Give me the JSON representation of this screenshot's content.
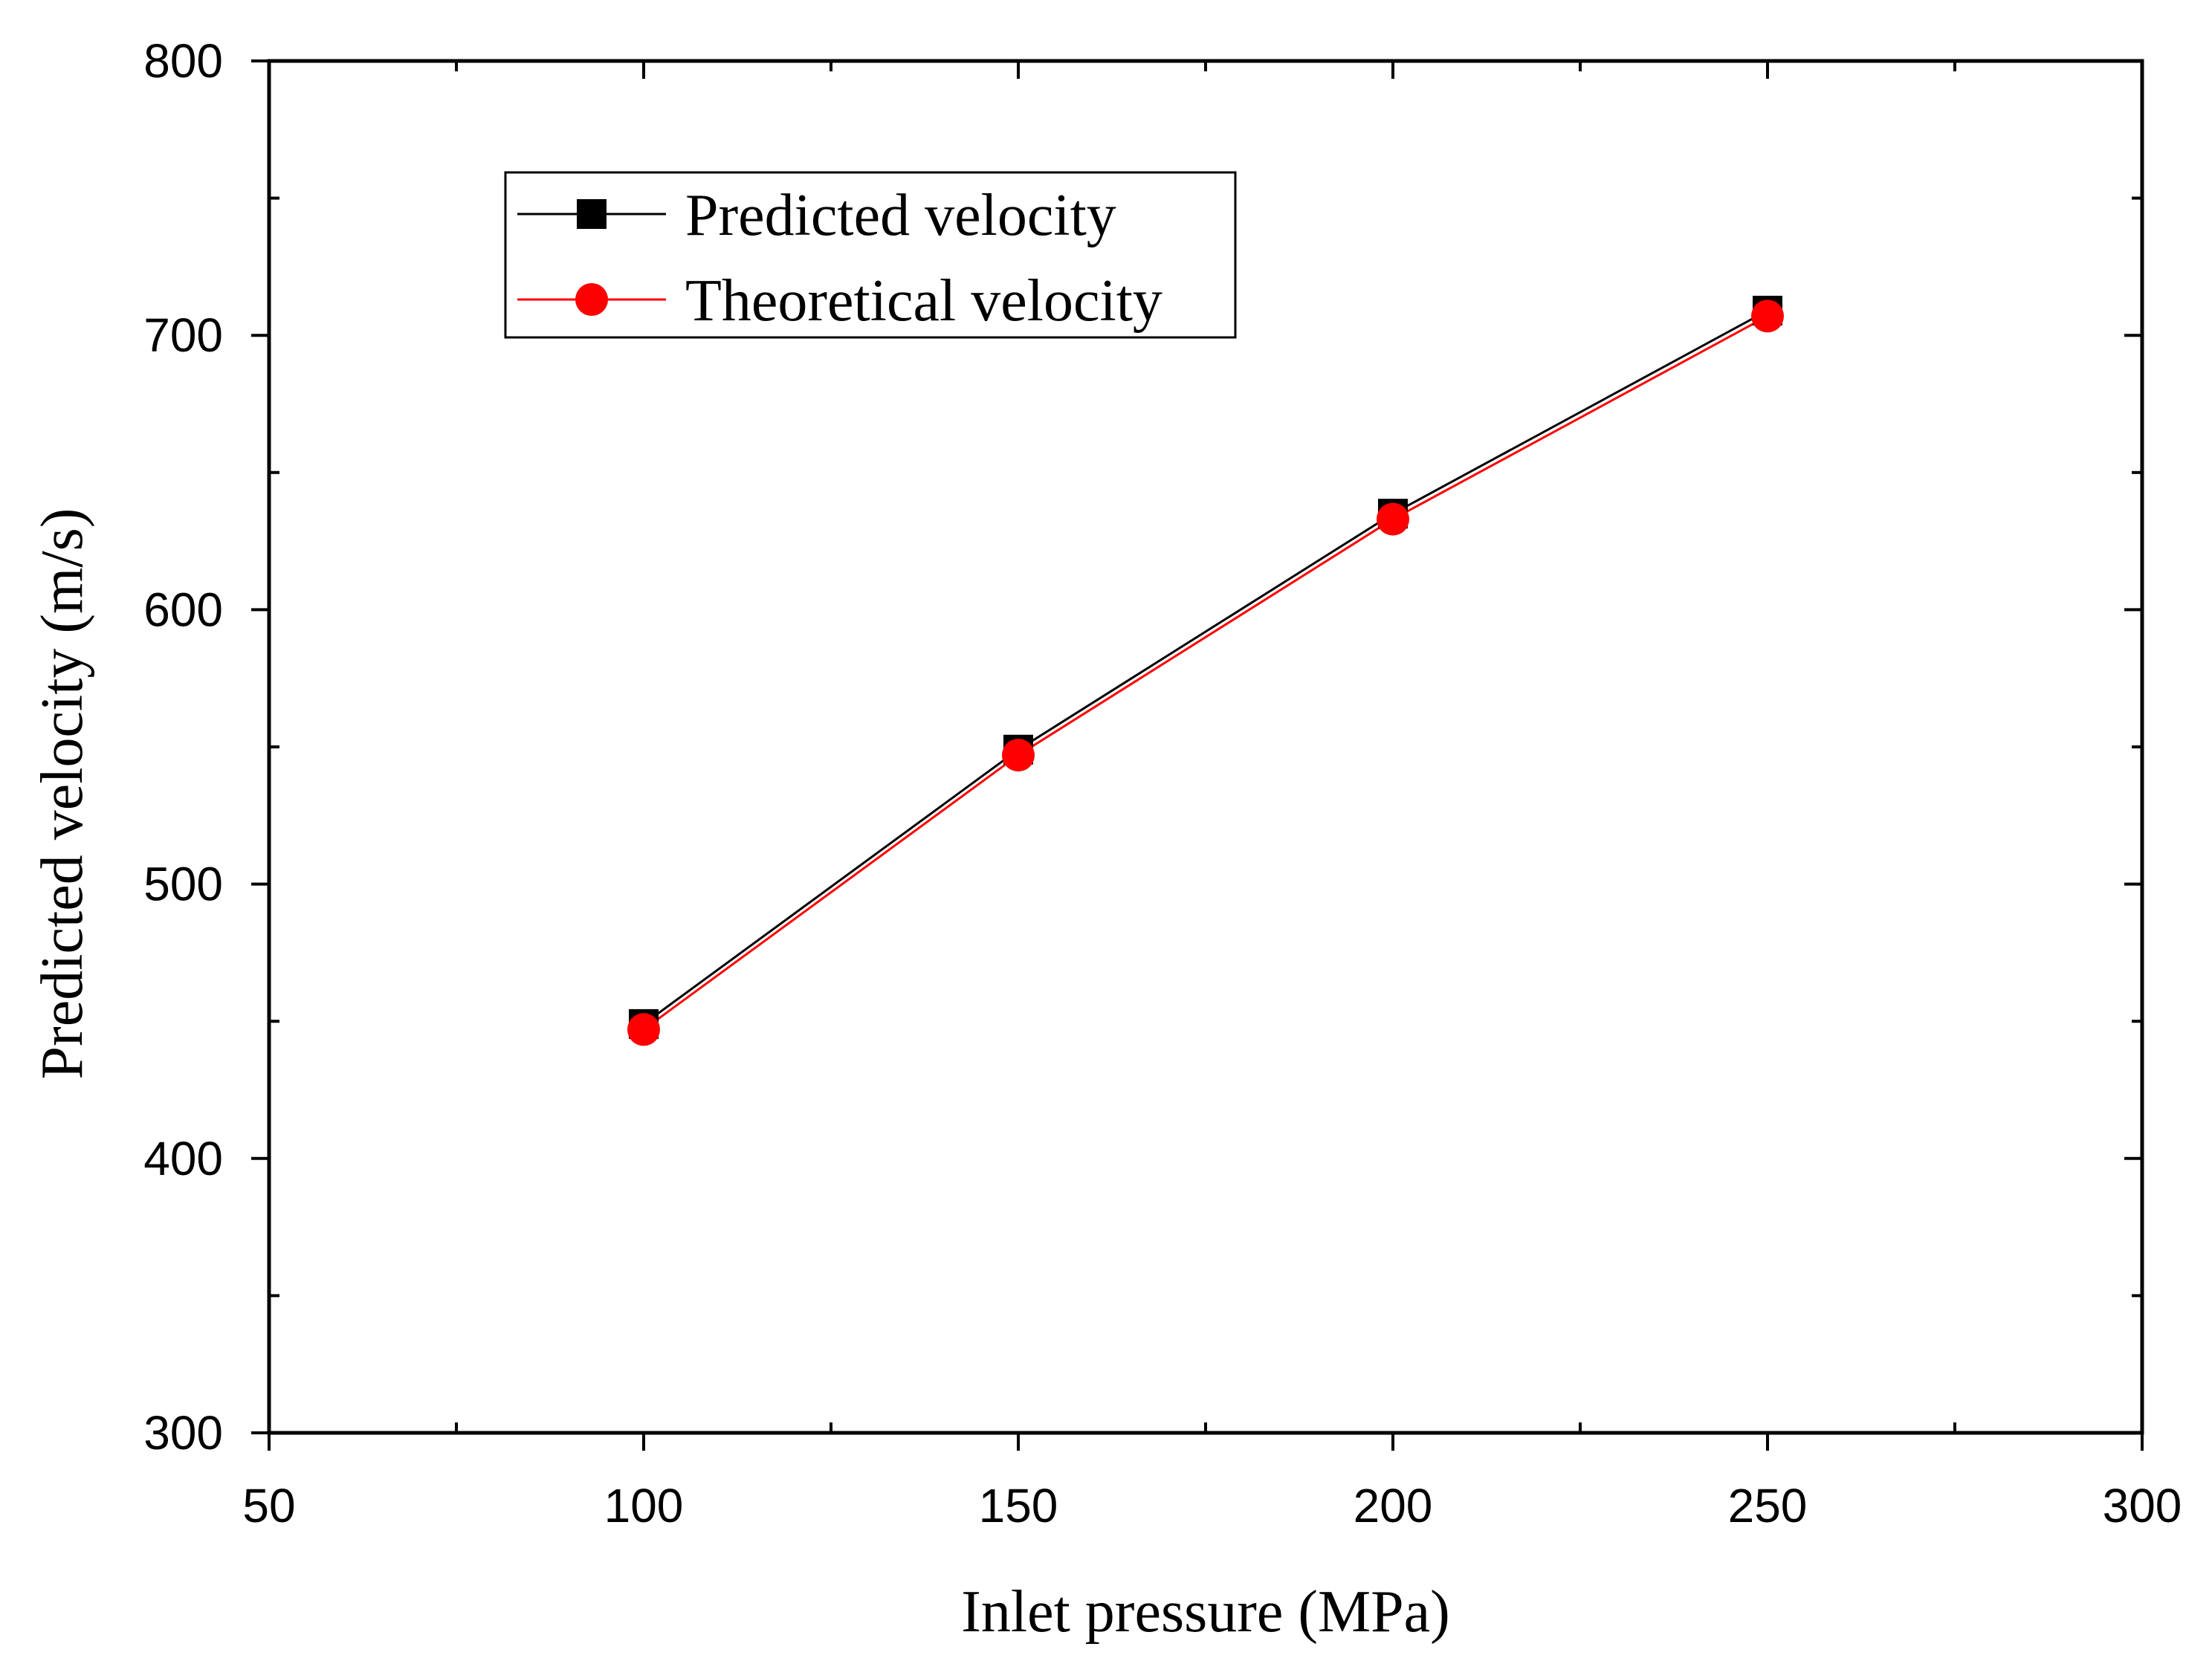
{
  "chart_data": {
    "type": "line",
    "title": "",
    "xlabel": "Inlet pressure (MPa)",
    "ylabel": "Predicted velocity (m/s)",
    "xlim": [
      50,
      300
    ],
    "ylim": [
      300,
      800
    ],
    "x_ticks": [
      "50",
      "100",
      "150",
      "200",
      "250",
      "300"
    ],
    "y_ticks": [
      "300",
      "400",
      "500",
      "600",
      "700",
      "800"
    ],
    "x_tick_values": [
      50,
      100,
      150,
      200,
      250,
      300
    ],
    "y_tick_values": [
      300,
      400,
      500,
      600,
      700,
      800
    ],
    "x_minor": [
      75,
      125,
      175,
      225,
      275
    ],
    "y_minor": [
      350,
      450,
      550,
      650,
      750
    ],
    "grid": false,
    "legend_position": "top-left",
    "x": [
      100,
      150,
      200,
      250
    ],
    "series": [
      {
        "name": "Predicted velocity",
        "marker": "square",
        "color": "#000000",
        "values": [
          449,
          549,
          635,
          709
        ]
      },
      {
        "name": "Theoretical velocity",
        "marker": "circle",
        "color": "#ff0000",
        "values": [
          447,
          547,
          633,
          707
        ]
      }
    ]
  }
}
